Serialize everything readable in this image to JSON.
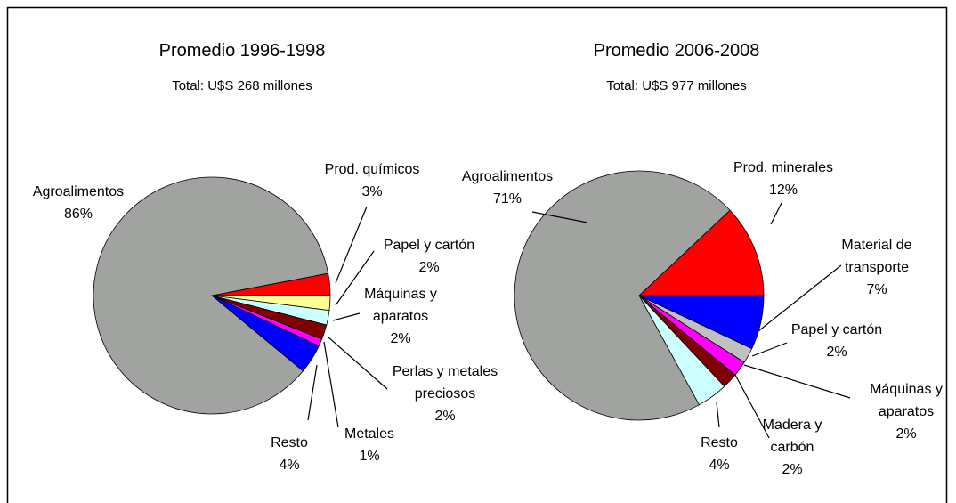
{
  "chart_data": [
    {
      "type": "pie",
      "title": "Promedio 1996-1998",
      "subtitle": "Total: U$S 268 millones",
      "categories": [
        "Prod. químicos",
        "Papel y cartón",
        "Máquinas y aparatos",
        "Perlas y metales preciosos",
        "Metales",
        "Resto",
        "Agroalimentos"
      ],
      "values": [
        3,
        2,
        2,
        2,
        1,
        4,
        86
      ],
      "value_labels": [
        "3%",
        "2%",
        "2%",
        "2%",
        "1%",
        "4%",
        "86%"
      ],
      "colors": [
        "#ff0000",
        "#ffff99",
        "#ccffff",
        "#800000",
        "#ff00ff",
        "#0000ff",
        "#a0a3a0"
      ]
    },
    {
      "type": "pie",
      "title": "Promedio 2006-2008",
      "subtitle": "Total: U$S 977 millones",
      "categories": [
        "Prod. minerales",
        "Material de transporte",
        "Papel y cartón",
        "Máquinas y aparatos",
        "Madera y carbón",
        "Resto",
        "Agroalimentos"
      ],
      "values": [
        12,
        7,
        2,
        2,
        2,
        4,
        71
      ],
      "value_labels": [
        "12%",
        "7%",
        "2%",
        "2%",
        "2%",
        "4%",
        "71%"
      ],
      "colors": [
        "#ff0000",
        "#0000ff",
        "#c0c0c0",
        "#ff00ff",
        "#800000",
        "#ccffff",
        "#a0a3a0"
      ]
    }
  ]
}
